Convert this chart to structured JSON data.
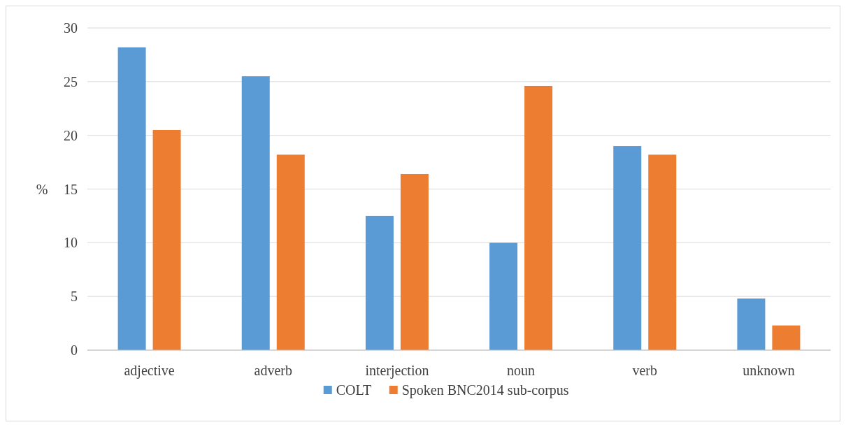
{
  "chart_data": {
    "type": "bar",
    "ylabel": "%",
    "categories": [
      "adjective",
      "adverb",
      "interjection",
      "noun",
      "verb",
      "unknown"
    ],
    "series": [
      {
        "name": "COLT",
        "color": "#5b9bd5",
        "values": [
          28.2,
          25.5,
          12.5,
          10.0,
          19.0,
          4.8
        ]
      },
      {
        "name": "Spoken BNC2014 sub-corpus",
        "color": "#ed7d31",
        "values": [
          20.5,
          18.2,
          16.4,
          24.6,
          18.2,
          2.3
        ]
      }
    ],
    "ylim": [
      0,
      30
    ],
    "yticks": [
      0,
      5,
      10,
      15,
      20,
      25,
      30
    ],
    "grid": "y",
    "legend": "bottom"
  }
}
